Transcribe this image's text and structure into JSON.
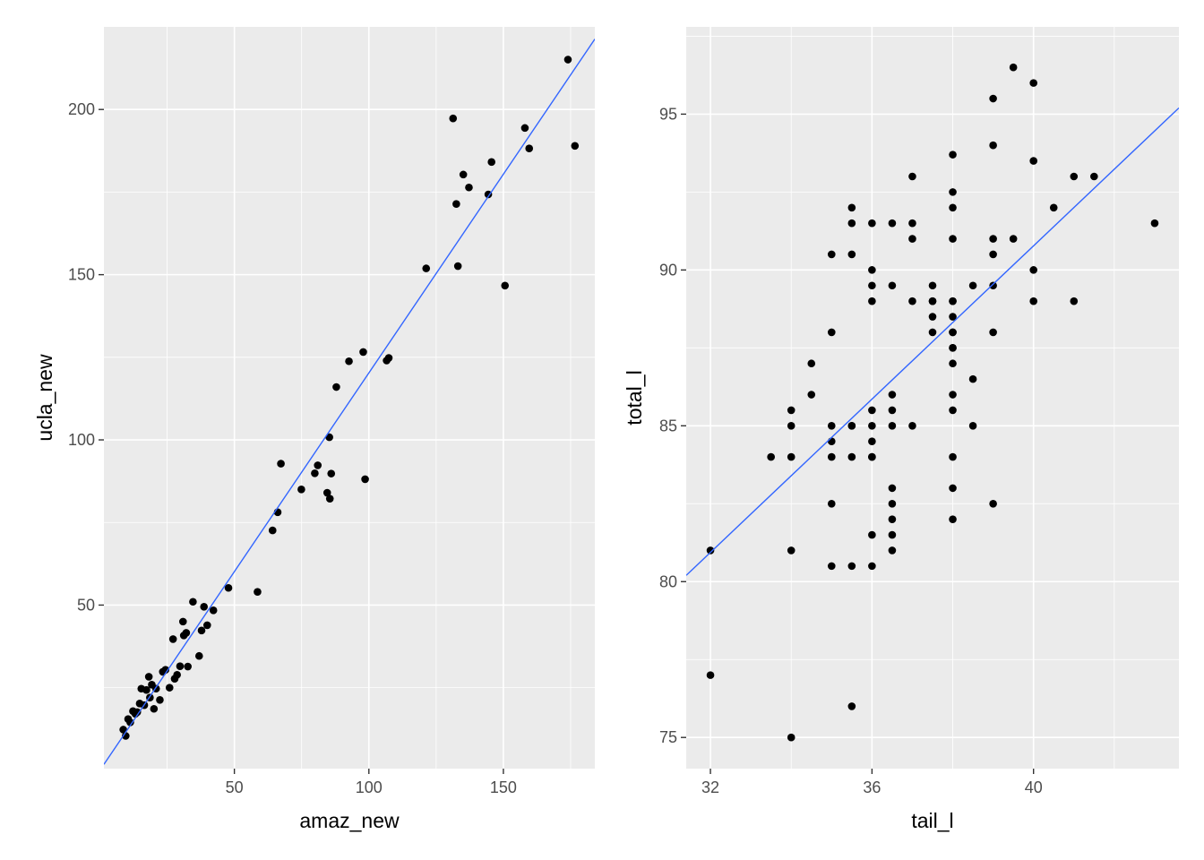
{
  "chart_data": [
    {
      "type": "scatter",
      "xlabel": "amaz_new",
      "ylabel": "ucla_new",
      "xlim": [
        1.5,
        184
      ],
      "ylim": [
        0.5,
        225
      ],
      "x_major_ticks": [
        50,
        100,
        150
      ],
      "y_major_ticks": [
        50,
        100,
        150,
        200
      ],
      "x_minor_ticks": [
        25,
        75,
        125,
        175
      ],
      "y_minor_ticks": [
        25,
        75,
        125,
        175
      ],
      "grid": true,
      "colors": {
        "points": "#000000",
        "fit_line": "#3366ff",
        "panel": "#ebebeb",
        "grid": "#ffffff"
      },
      "series": [
        {
          "x": [
            8.7,
            9.6,
            10.5,
            11.3,
            12.3,
            13.2,
            13.9,
            14.8,
            15.4,
            16.5,
            17.3,
            18.2,
            18.6,
            19.3,
            20.1,
            20.9,
            22.3,
            23.4,
            24.4,
            25.9,
            27.2,
            27.8,
            28.7,
            29.8,
            30.9,
            31.2,
            32.1,
            32.7,
            34.6,
            36.9,
            37.8,
            38.7,
            39.9,
            42.2,
            47.8,
            58.6,
            64.2,
            66.1,
            67.3,
            74.9,
            79.9,
            81.0,
            84.5,
            85.3,
            85.5,
            86.0,
            87.9,
            92.6,
            97.9,
            98.6,
            106.6,
            107.4,
            121.3,
            131.3,
            132.5,
            133.1,
            135.1,
            137.2,
            144.4,
            145.6,
            150.6,
            158.0,
            159.6,
            174.0,
            176.6
          ],
          "y": [
            12.3,
            10.4,
            15.5,
            14.5,
            17.9,
            17.1,
            17.6,
            20.2,
            24.7,
            19.7,
            24.3,
            28.3,
            22.0,
            25.9,
            18.6,
            24.7,
            21.3,
            29.8,
            30.4,
            25.0,
            39.7,
            27.7,
            28.9,
            31.5,
            45.0,
            40.8,
            41.6,
            31.4,
            51.0,
            34.6,
            42.3,
            49.5,
            43.9,
            48.4,
            55.2,
            54.0,
            72.6,
            78.1,
            92.8,
            85.0,
            89.9,
            92.3,
            84.0,
            100.8,
            82.2,
            89.8,
            116.0,
            123.8,
            126.6,
            88.1,
            124.0,
            124.8,
            151.9,
            197.3,
            171.4,
            152.6,
            180.3,
            176.4,
            174.3,
            184.1,
            146.7,
            194.4,
            188.2,
            215.1,
            189.0
          ]
        }
      ],
      "fit_line": {
        "x": [
          1.5,
          184
        ],
        "y": [
          1.8,
          221.3
        ]
      }
    },
    {
      "type": "scatter",
      "xlabel": "tail_l",
      "ylabel": "total_l",
      "xlim": [
        31.4,
        43.6
      ],
      "ylim": [
        74.0,
        97.8
      ],
      "x_major_ticks": [
        32,
        36,
        40
      ],
      "y_major_ticks": [
        75,
        80,
        85,
        90,
        95
      ],
      "x_minor_ticks": [
        34,
        38,
        42
      ],
      "y_minor_ticks": [
        77.5,
        82.5,
        87.5,
        92.5,
        97.5
      ],
      "grid": true,
      "colors": {
        "points": "#000000",
        "fit_line": "#3366ff",
        "panel": "#ebebeb",
        "grid": "#ffffff"
      },
      "series": [
        {
          "x": [
            32,
            32,
            33.5,
            34,
            34,
            34,
            34,
            34,
            34.5,
            34.5,
            35,
            35,
            35,
            35,
            35,
            35,
            35,
            35.5,
            35.5,
            35.5,
            35.5,
            35.5,
            35.5,
            35.5,
            35.5,
            36,
            36,
            36,
            36,
            36,
            36,
            36,
            36,
            36,
            36,
            36,
            36.5,
            36.5,
            36.5,
            36.5,
            36.5,
            36.5,
            36.5,
            36.5,
            36.5,
            36.5,
            37,
            37,
            37,
            37,
            37,
            37.5,
            37.5,
            37.5,
            37.5,
            37.5,
            38,
            38,
            38,
            38,
            38,
            38,
            38,
            38,
            38,
            38,
            38,
            38,
            38,
            38,
            38,
            38,
            38,
            38.5,
            38.5,
            38.5,
            39,
            39,
            39,
            39,
            39,
            39,
            39,
            39.5,
            39.5,
            40,
            40,
            40,
            40,
            40.5,
            41,
            41,
            41.5,
            43
          ],
          "y": [
            81,
            77,
            84,
            85.5,
            85,
            84,
            81,
            75,
            87,
            86,
            90.5,
            88,
            85,
            84.5,
            84,
            82.5,
            80.5,
            92,
            91.5,
            90.5,
            85,
            84,
            80.5,
            76,
            85,
            91.5,
            90,
            89.5,
            89,
            85.5,
            85,
            84.5,
            84,
            81.5,
            80.5,
            84,
            91.5,
            89.5,
            86,
            85.5,
            85,
            83,
            82.5,
            82,
            81.5,
            81,
            93,
            91.5,
            91,
            89,
            85,
            89.5,
            89,
            88.5,
            88,
            89,
            93.7,
            92.5,
            92,
            91,
            89,
            88.5,
            88,
            87.5,
            87,
            86,
            85.5,
            84,
            83,
            82,
            88,
            87.5,
            89,
            89.5,
            86.5,
            85,
            95.5,
            94,
            91,
            90.5,
            89.5,
            88,
            82.5,
            96.5,
            91,
            96,
            93.5,
            90,
            89,
            92,
            93,
            89,
            93,
            91.5
          ]
        }
      ],
      "fit_line": {
        "x": [
          31.4,
          43.6
        ],
        "y": [
          80.2,
          95.2
        ]
      }
    }
  ]
}
